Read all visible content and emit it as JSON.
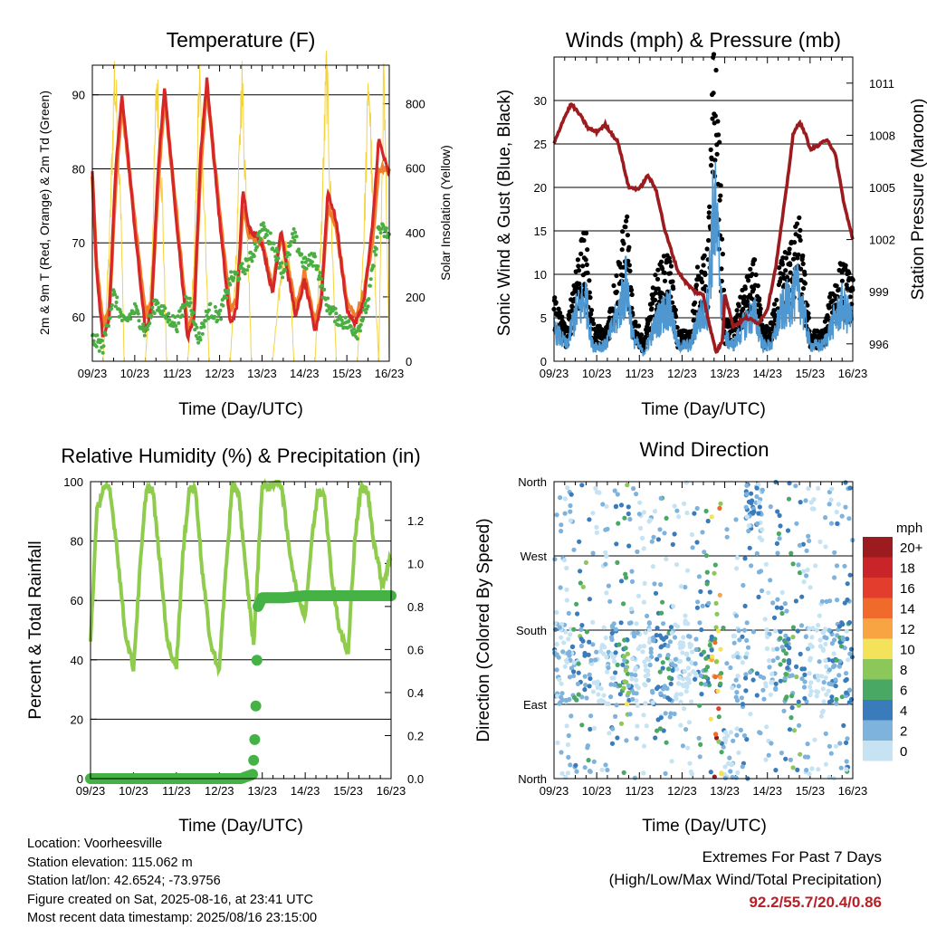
{
  "station": {
    "location": "Location: Voorheesville",
    "elevation": "Station elevation: 115.062 m",
    "latlon": "Station lat/lon: 42.6524; -73.9756",
    "created": "Figure created on Sat, 2025-08-16, at 23:41 UTC",
    "recent": "Most recent data timestamp: 2025/08/16 23:15:00"
  },
  "extremes": {
    "title": "Extremes For Past 7 Days",
    "subtitle": "(High/Low/Max Wind/Total Precipitation)",
    "values": "92.2/55.7/20.4/0.86"
  },
  "colors": {
    "temp2m": "#d62728",
    "temp9m": "#f07e2a",
    "dewpoint": "#4aae42",
    "solar": "#f5d33f",
    "gust": "#000000",
    "wind": "#4e97d1",
    "pressure": "#9b1b1e",
    "rh": "#8fcc4e",
    "precip": "#44b244"
  },
  "chart_data": [
    {
      "id": "temperature",
      "type": "line",
      "title": "Temperature (F)",
      "xlabel": "Time (Day/UTC)",
      "ylabel": "2m & 9m T (Red, Orange) & 2m Td (Green)",
      "y2label": "Solar Insolation (Yellow)",
      "xticks": [
        "09/23",
        "10/23",
        "11/23",
        "12/23",
        "13/23",
        "14/23",
        "15/23",
        "16/23"
      ],
      "xlim": [
        0,
        7
      ],
      "ylim": [
        54,
        94
      ],
      "yticks": [
        60,
        70,
        80,
        90
      ],
      "y2lim": [
        0,
        920
      ],
      "y2ticks": [
        0,
        200,
        400,
        600,
        800
      ],
      "grid": true,
      "series": [
        {
          "key": "solar",
          "axis": "y2",
          "x": [
            0,
            0.25,
            0.4,
            0.52,
            0.65,
            0.75,
            0.87,
            1,
            1.25,
            1.4,
            1.52,
            1.65,
            1.75,
            1.87,
            2,
            2.25,
            2.4,
            2.52,
            2.65,
            2.75,
            2.87,
            3,
            3.25,
            3.4,
            3.52,
            3.65,
            3.75,
            3.87,
            4,
            4.25,
            4.4,
            4.52,
            4.65,
            4.75,
            4.87,
            5,
            5.25,
            5.4,
            5.52,
            5.65,
            5.75,
            5.87,
            6,
            6.25,
            6.4,
            6.52,
            6.65,
            6.75,
            6.87,
            7
          ],
          "y": [
            0,
            0,
            340,
            880,
            600,
            0,
            0,
            0,
            0,
            300,
            870,
            500,
            0,
            0,
            0,
            0,
            300,
            860,
            480,
            0,
            0,
            0,
            0,
            330,
            880,
            440,
            0,
            0,
            0,
            0,
            200,
            350,
            300,
            0,
            0,
            0,
            0,
            400,
            900,
            380,
            0,
            0,
            0,
            0,
            380,
            880,
            300,
            0,
            870,
            0
          ]
        },
        {
          "key": "temp9m",
          "axis": "y",
          "x": [
            0,
            0.1,
            0.25,
            0.4,
            0.55,
            0.7,
            1,
            1.25,
            1.4,
            1.55,
            1.7,
            2,
            2.25,
            2.4,
            2.55,
            2.7,
            3,
            3.25,
            3.4,
            3.55,
            3.7,
            4,
            4.25,
            4.45,
            4.6,
            4.8,
            5,
            5.25,
            5.4,
            5.55,
            5.75,
            6,
            6.2,
            6.4,
            6.6,
            6.75,
            7
          ],
          "y": [
            79,
            67,
            59,
            61,
            78,
            89,
            73,
            60,
            62,
            78,
            90,
            73,
            58,
            61,
            80,
            91,
            74,
            61,
            62,
            75,
            71,
            70,
            64,
            71,
            67,
            61,
            66,
            59,
            63,
            75,
            72,
            62,
            60,
            63,
            70,
            80,
            80
          ]
        },
        {
          "key": "temp2m",
          "axis": "y",
          "x": [
            0,
            0.1,
            0.25,
            0.4,
            0.55,
            0.7,
            1,
            1.25,
            1.4,
            1.55,
            1.7,
            2,
            2.25,
            2.4,
            2.55,
            2.7,
            3,
            3.25,
            3.4,
            3.55,
            3.7,
            4,
            4.25,
            4.45,
            4.6,
            4.8,
            5,
            5.25,
            5.4,
            5.55,
            5.75,
            6,
            6.2,
            6.4,
            6.6,
            6.75,
            7
          ],
          "y": [
            80,
            66,
            57,
            60,
            80,
            90,
            72,
            58,
            61,
            80,
            91,
            72,
            57,
            60,
            82,
            92,
            73,
            59,
            61,
            77,
            72,
            70,
            63,
            72,
            66,
            60,
            65,
            58,
            62,
            77,
            73,
            61,
            59,
            62,
            72,
            84,
            79
          ]
        },
        {
          "key": "dewpoint",
          "axis": "y",
          "x": [
            0,
            0.25,
            0.5,
            0.75,
            1,
            1.25,
            1.5,
            1.75,
            2,
            2.25,
            2.5,
            2.75,
            3,
            3.25,
            3.5,
            3.75,
            4,
            4.25,
            4.5,
            4.75,
            5,
            5.25,
            5.5,
            5.75,
            6,
            6.25,
            6.5,
            6.75,
            7
          ],
          "y": [
            57,
            56,
            63,
            59,
            61,
            58,
            62,
            60,
            59,
            63,
            57,
            61,
            60,
            65,
            66,
            68,
            72,
            70,
            66,
            71,
            67,
            68,
            62,
            60,
            59,
            58,
            62,
            72,
            71
          ]
        },
        {
          "key": "gust",
          "axis": "y",
          "x": [
            0,
            0.3,
            0.5,
            0.75,
            0.9,
            1.2,
            1.5,
            1.7,
            1.85,
            2.1,
            2.4,
            2.7,
            2.9,
            3.2,
            3.35,
            3.6,
            3.75,
            3.85,
            4,
            4.2,
            4.5,
            4.7,
            4.9,
            5.1,
            5.3,
            5.55,
            5.75,
            6,
            6.3,
            6.55,
            6.75,
            7
          ],
          "y": [
            7,
            3,
            10,
            13,
            4,
            3,
            10,
            15,
            5,
            2,
            9,
            11,
            3,
            3,
            9,
            11,
            33,
            25,
            4,
            4,
            8,
            10,
            3,
            4,
            10,
            12,
            14,
            3,
            3,
            8,
            10,
            8
          ]
        },
        {
          "key": "wind",
          "axis": "y",
          "x": [
            0,
            0.3,
            0.5,
            0.75,
            0.9,
            1.2,
            1.5,
            1.7,
            1.85,
            2.1,
            2.4,
            2.7,
            2.9,
            3.2,
            3.35,
            3.6,
            3.75,
            3.85,
            4,
            4.2,
            4.5,
            4.7,
            4.9,
            5.1,
            5.3,
            5.55,
            5.75,
            6,
            6.3,
            6.55,
            6.75,
            7
          ],
          "y": [
            4,
            2,
            6,
            8,
            2,
            2,
            6,
            10,
            3,
            1,
            5,
            7,
            2,
            2,
            5,
            7,
            20,
            14,
            3,
            2,
            5,
            6,
            2,
            2,
            6,
            8,
            9,
            2,
            2,
            5,
            7,
            5
          ]
        },
        {
          "key": "pressure",
          "axis": "y2",
          "x": [
            0,
            0.2,
            0.4,
            0.6,
            0.8,
            1,
            1.2,
            1.5,
            1.75,
            2,
            2.2,
            2.4,
            2.6,
            2.9,
            3.1,
            3.3,
            3.5,
            3.65,
            3.8,
            3.95,
            4,
            4.2,
            4.5,
            4.8,
            5,
            5.2,
            5.45,
            5.6,
            5.75,
            5.9,
            6,
            6.2,
            6.4,
            6.6,
            6.8,
            7
          ],
          "y": [
            1007.5,
            1008.8,
            1009.8,
            1009.2,
            1008.4,
            1008.2,
            1008.6,
            1007.6,
            1005,
            1004.9,
            1005.7,
            1004.8,
            1002.5,
            1000.2,
            999.5,
            999,
            998.8,
            997,
            995.5,
            996.2,
            998.9,
            997,
            997.5,
            997.2,
            998,
            1000.5,
            1005,
            1008,
            1008.8,
            1008,
            1007.2,
            1007.4,
            1007.8,
            1006.8,
            1004,
            1002
          ]
        },
        {
          "key": "rh",
          "axis": "y",
          "x": [
            0,
            0.15,
            0.3,
            0.45,
            0.6,
            0.8,
            1,
            1.15,
            1.3,
            1.45,
            1.6,
            1.8,
            2,
            2.15,
            2.3,
            2.45,
            2.6,
            2.8,
            3,
            3.15,
            3.3,
            3.45,
            3.6,
            3.8,
            4,
            4.15,
            4.3,
            4.45,
            4.6,
            4.8,
            5,
            5.15,
            5.3,
            5.45,
            5.6,
            5.8,
            6,
            6.15,
            6.3,
            6.45,
            6.6,
            6.8,
            7
          ],
          "y": [
            47,
            90,
            98,
            97,
            80,
            50,
            37,
            70,
            98,
            97,
            75,
            45,
            38,
            75,
            98,
            97,
            70,
            45,
            37,
            70,
            98,
            97,
            72,
            45,
            99,
            98,
            100,
            99,
            80,
            63,
            55,
            80,
            97,
            96,
            70,
            50,
            42,
            80,
            98,
            97,
            80,
            65,
            75
          ]
        },
        {
          "key": "precip",
          "axis": "y2",
          "x": [
            0,
            0.5,
            1,
            1.5,
            2,
            2.5,
            3,
            3.5,
            3.78,
            3.82,
            3.86,
            3.9,
            4,
            4.5,
            5,
            5.5,
            6,
            6.5,
            7
          ],
          "y": [
            0,
            0,
            0,
            0,
            0,
            0,
            0,
            0,
            0.02,
            0.15,
            0.4,
            0.8,
            0.84,
            0.84,
            0.85,
            0.85,
            0.85,
            0.85,
            0.85
          ]
        }
      ]
    },
    {
      "id": "winds",
      "type": "line",
      "title": "Winds (mph) & Pressure (mb)",
      "xlabel": "Time (Day/UTC)",
      "ylabel": "Sonic Wind & Gust (Blue, Black)",
      "y2label": "Station Pressure (Maroon)",
      "xticks": [
        "09/23",
        "10/23",
        "11/23",
        "12/23",
        "13/23",
        "14/23",
        "15/23",
        "16/23"
      ],
      "xlim": [
        0,
        7
      ],
      "ylim": [
        0,
        35
      ],
      "yticks": [
        0,
        5,
        10,
        15,
        20,
        25,
        30
      ],
      "y2lim": [
        995,
        1012.5
      ],
      "y2ticks": [
        996,
        999,
        1002,
        1005,
        1008,
        1011
      ],
      "grid": true
    },
    {
      "id": "rh",
      "type": "line",
      "title": "Relative Humidity (%) & Precipitation (in)",
      "xlabel": "Time (Day/UTC)",
      "ylabel": "Percent & Total Rainfall",
      "xticks": [
        "09/23",
        "10/23",
        "11/23",
        "12/23",
        "13/23",
        "14/23",
        "15/23",
        "16/23"
      ],
      "xlim": [
        0,
        7
      ],
      "ylim": [
        0,
        100
      ],
      "yticks": [
        0,
        20,
        40,
        60,
        80,
        100
      ],
      "y2lim": [
        0,
        1.38
      ],
      "y2ticks": [
        "0.0",
        "0.2",
        "0.4",
        "0.6",
        "0.8",
        "1.0",
        "1.2"
      ],
      "grid": true
    },
    {
      "id": "direction",
      "type": "scatter",
      "title": "Wind Direction",
      "xlabel": "Time (Day/UTC)",
      "ylabel": "Direction (Colored By Speed)",
      "xticks": [
        "09/23",
        "10/23",
        "11/23",
        "12/23",
        "13/23",
        "14/23",
        "15/23",
        "16/23"
      ],
      "xlim": [
        0,
        7
      ],
      "ylim": [
        0,
        360
      ],
      "yticks": [
        "North",
        "East",
        "South",
        "West",
        "North"
      ],
      "grid": true,
      "colorbar": {
        "title": "mph",
        "labels": [
          "20+",
          "18",
          "16",
          "14",
          "12",
          "10",
          "8",
          "6",
          "4",
          "2",
          "0"
        ],
        "colors": [
          "#9b1b1e",
          "#c9242a",
          "#e23d2d",
          "#f06a2b",
          "#f8a442",
          "#f3e25a",
          "#8cc75a",
          "#4aa865",
          "#3a7cbb",
          "#7db3dd",
          "#c5e3f3"
        ]
      }
    }
  ]
}
